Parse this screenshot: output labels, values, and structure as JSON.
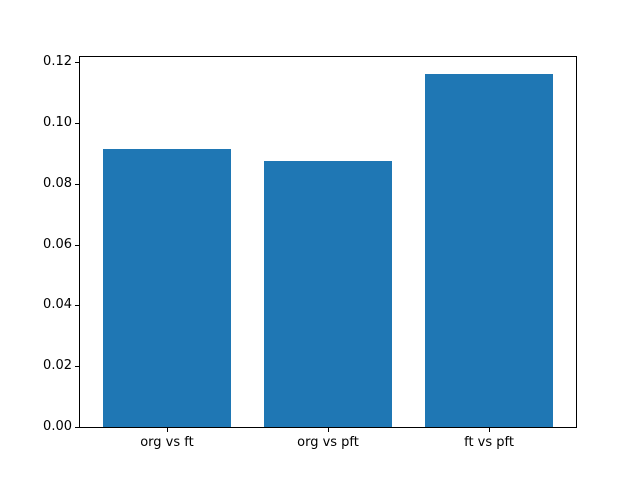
{
  "figure": {
    "background_color": "#ffffff",
    "spine_color": "#000000",
    "tick_color": "#000000"
  },
  "chart_data": {
    "type": "bar",
    "categories": [
      "org vs ft",
      "org vs pft",
      "ft vs pft"
    ],
    "values": [
      0.0916,
      0.0876,
      0.1162
    ],
    "title": "",
    "xlabel": "",
    "ylabel": "",
    "ylim": [
      0,
      0.1218
    ],
    "yticks": [
      0.0,
      0.02,
      0.04,
      0.06,
      0.08,
      0.1,
      0.12
    ],
    "ytick_labels": [
      "0.00",
      "0.02",
      "0.04",
      "0.06",
      "0.08",
      "0.10",
      "0.12"
    ],
    "bar_color": "#1f77b4",
    "grid": false,
    "legend": null
  }
}
